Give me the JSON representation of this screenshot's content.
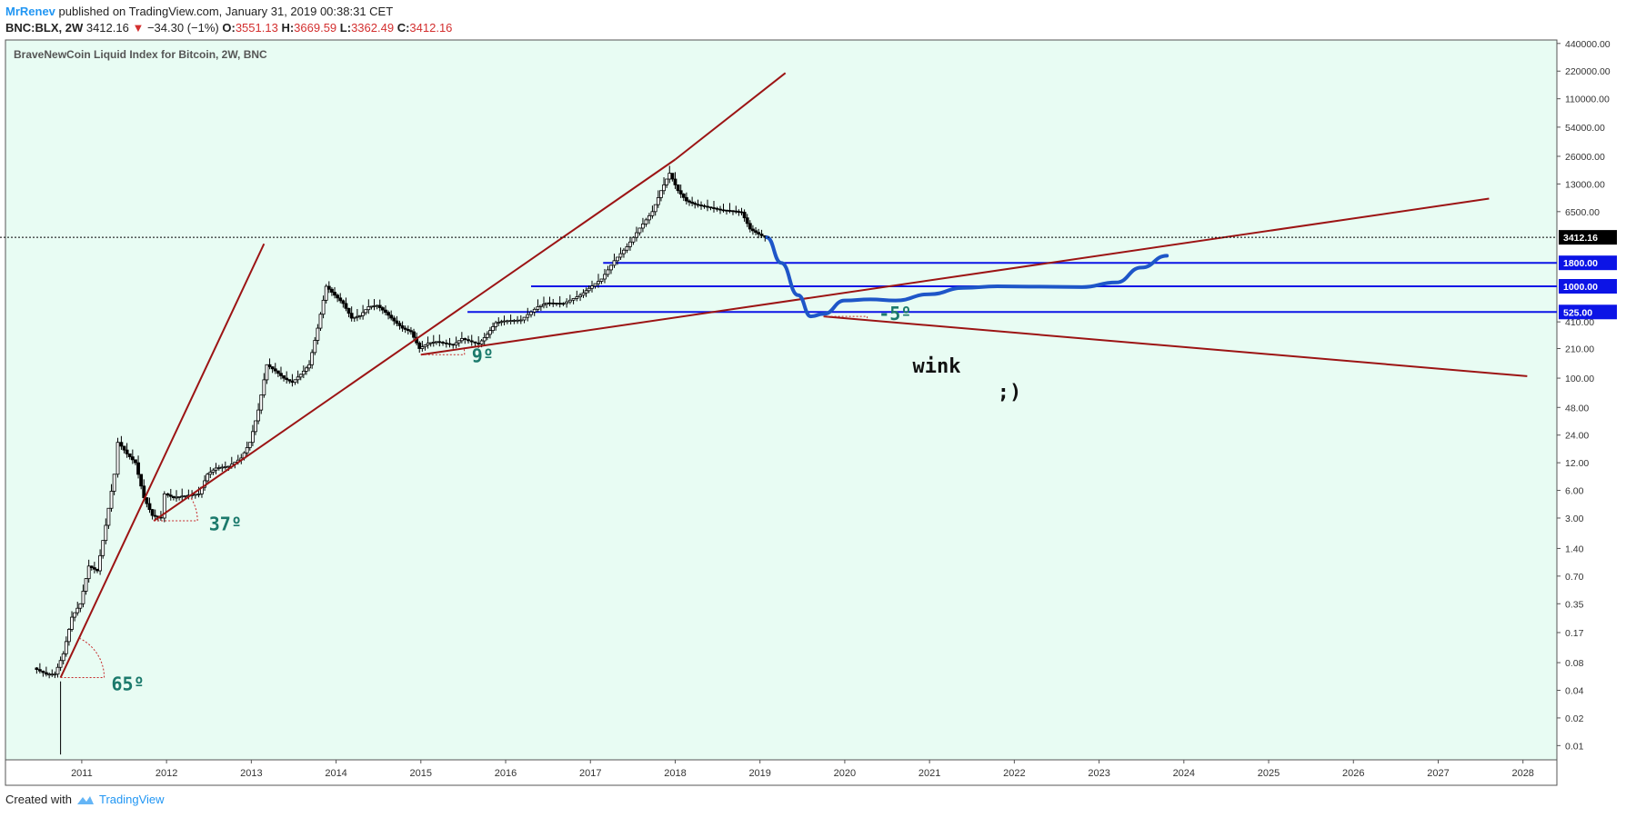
{
  "header": {
    "author": "MrRenev",
    "published": "published on TradingView.com, January 31, 2019 00:38:31 CET",
    "symbol": "BNC:BLX, 2W",
    "last": "3412.16",
    "change": "−34.30 (−1%)",
    "o_label": "O:",
    "o": "3551.13",
    "h_label": "H:",
    "h": "3669.59",
    "l_label": "L:",
    "l": "3362.49",
    "c_label": "C:",
    "c": "3412.16",
    "down_arrow": "▼"
  },
  "footer": {
    "created_with": "Created with",
    "brand": "TradingView"
  },
  "colors": {
    "background": "#e8fcf3",
    "trendline": "#9c1414",
    "support": "#0c14e6",
    "projection": "#1e56c8",
    "angle_text": "#1b7a6c",
    "candle": "#000000",
    "price_tag_bg": "#000000"
  },
  "chart_data": {
    "type": "line",
    "title": "BraveNewCoin Liquid Index for Bitcoin, 2W, BNC",
    "scale": "log",
    "x_ticks": [
      "2011",
      "2012",
      "2013",
      "2014",
      "2015",
      "2016",
      "2017",
      "2018",
      "2019",
      "2020",
      "2021",
      "2022",
      "2023",
      "2024",
      "2025",
      "2026",
      "2027",
      "2028"
    ],
    "y_ticks": [
      "440000.00",
      "220000.00",
      "110000.00",
      "54000.00",
      "26000.00",
      "13000.00",
      "6500.00",
      "3412.16",
      "1800.00",
      "1000.00",
      "525.00",
      "410.00",
      "210.00",
      "100.00",
      "48.00",
      "24.00",
      "12.00",
      "6.00",
      "3.00",
      "1.40",
      "0.70",
      "0.35",
      "0.17",
      "0.08",
      "0.04",
      "0.02",
      "0.01"
    ],
    "ylim": [
      0.007,
      480000
    ],
    "xlim": [
      2010.1,
      2028.4
    ],
    "current_price": 3412.16,
    "price_series": [
      [
        2010.45,
        0.07
      ],
      [
        2010.6,
        0.06
      ],
      [
        2010.7,
        0.06
      ],
      [
        2010.8,
        0.1
      ],
      [
        2010.9,
        0.25
      ],
      [
        2011.0,
        0.35
      ],
      [
        2011.1,
        0.9
      ],
      [
        2011.2,
        0.8
      ],
      [
        2011.3,
        2.5
      ],
      [
        2011.4,
        9
      ],
      [
        2011.45,
        20
      ],
      [
        2011.55,
        15
      ],
      [
        2011.65,
        12
      ],
      [
        2011.75,
        5
      ],
      [
        2011.85,
        3.2
      ],
      [
        2011.95,
        3.0
      ],
      [
        2012.0,
        5.5
      ],
      [
        2012.1,
        5.0
      ],
      [
        2012.2,
        5.2
      ],
      [
        2012.4,
        5.5
      ],
      [
        2012.5,
        9
      ],
      [
        2012.6,
        10.5
      ],
      [
        2012.75,
        11
      ],
      [
        2012.9,
        13.5
      ],
      [
        2013.0,
        20
      ],
      [
        2013.1,
        45
      ],
      [
        2013.2,
        140
      ],
      [
        2013.3,
        120
      ],
      [
        2013.4,
        100
      ],
      [
        2013.5,
        90
      ],
      [
        2013.6,
        110
      ],
      [
        2013.7,
        140
      ],
      [
        2013.8,
        350
      ],
      [
        2013.9,
        1000
      ],
      [
        2014.0,
        800
      ],
      [
        2014.1,
        650
      ],
      [
        2014.2,
        450
      ],
      [
        2014.3,
        480
      ],
      [
        2014.4,
        600
      ],
      [
        2014.5,
        620
      ],
      [
        2014.6,
        520
      ],
      [
        2014.7,
        420
      ],
      [
        2014.8,
        350
      ],
      [
        2014.9,
        320
      ],
      [
        2015.0,
        210
      ],
      [
        2015.1,
        240
      ],
      [
        2015.2,
        250
      ],
      [
        2015.4,
        230
      ],
      [
        2015.5,
        270
      ],
      [
        2015.7,
        235
      ],
      [
        2015.8,
        300
      ],
      [
        2015.9,
        400
      ],
      [
        2016.0,
        420
      ],
      [
        2016.2,
        430
      ],
      [
        2016.4,
        600
      ],
      [
        2016.5,
        660
      ],
      [
        2016.7,
        650
      ],
      [
        2016.9,
        800
      ],
      [
        2017.0,
        950
      ],
      [
        2017.15,
        1200
      ],
      [
        2017.3,
        1900
      ],
      [
        2017.45,
        2700
      ],
      [
        2017.6,
        4300
      ],
      [
        2017.75,
        6500
      ],
      [
        2017.85,
        11000
      ],
      [
        2017.95,
        17000
      ],
      [
        2018.05,
        11000
      ],
      [
        2018.15,
        8500
      ],
      [
        2018.25,
        7800
      ],
      [
        2018.4,
        7300
      ],
      [
        2018.55,
        6800
      ],
      [
        2018.7,
        6600
      ],
      [
        2018.8,
        6400
      ],
      [
        2018.9,
        4200
      ],
      [
        2019.0,
        3700
      ],
      [
        2019.08,
        3412.16
      ]
    ],
    "projection": [
      [
        2019.08,
        3412.16
      ],
      [
        2019.25,
        1800
      ],
      [
        2019.45,
        800
      ],
      [
        2019.6,
        470
      ],
      [
        2019.75,
        500
      ],
      [
        2020.0,
        700
      ],
      [
        2020.3,
        720
      ],
      [
        2020.6,
        700
      ],
      [
        2021.0,
        820
      ],
      [
        2021.4,
        960
      ],
      [
        2021.8,
        1000
      ],
      [
        2022.3,
        990
      ],
      [
        2022.8,
        980
      ],
      [
        2023.2,
        1100
      ],
      [
        2023.5,
        1600
      ],
      [
        2023.8,
        2150
      ]
    ],
    "trendlines": [
      {
        "from": [
          2010.75,
          0.055
        ],
        "to": [
          2013.15,
          2900
        ]
      },
      {
        "from": [
          2011.85,
          2.8
        ],
        "to": [
          2018.0,
          24000
        ]
      },
      {
        "from": [
          2018.0,
          24000
        ],
        "to": [
          2019.3,
          210000
        ]
      },
      {
        "from": [
          2015.0,
          180
        ],
        "to": [
          2027.6,
          9000
        ]
      },
      {
        "from": [
          2019.75,
          470
        ],
        "to": [
          2028.05,
          105
        ]
      }
    ],
    "horizontal_lines": [
      {
        "value": 1800,
        "label": "1800.00",
        "from_x": 2017.15
      },
      {
        "value": 1000,
        "label": "1000.00",
        "from_x": 2016.3
      },
      {
        "value": 525,
        "label": "525.00",
        "from_x": 2015.55
      }
    ],
    "angle_annotations": [
      {
        "text": "65º",
        "x": 2011.35,
        "y": 0.04
      },
      {
        "text": "37º",
        "x": 2012.5,
        "y": 2.2
      },
      {
        "text": "9º",
        "x": 2015.6,
        "y": 150
      },
      {
        "text": "-5º",
        "x": 2020.4,
        "y": 430
      }
    ],
    "text_annotations": [
      {
        "text": "wink",
        "x": 2020.8,
        "y": 115
      },
      {
        "text": ";)",
        "x": 2021.8,
        "y": 60
      }
    ],
    "angle_arcs": [
      {
        "center": [
          2010.75,
          0.055
        ],
        "dir_end": [
          2013.15,
          2900
        ]
      },
      {
        "center": [
          2011.85,
          2.8
        ],
        "dir_end": [
          2018.0,
          24000
        ]
      },
      {
        "center": [
          2015.0,
          180
        ],
        "dir_end": [
          2027.6,
          9000
        ]
      },
      {
        "center": [
          2019.75,
          470
        ],
        "dir_end": [
          2028.05,
          105
        ]
      }
    ]
  }
}
